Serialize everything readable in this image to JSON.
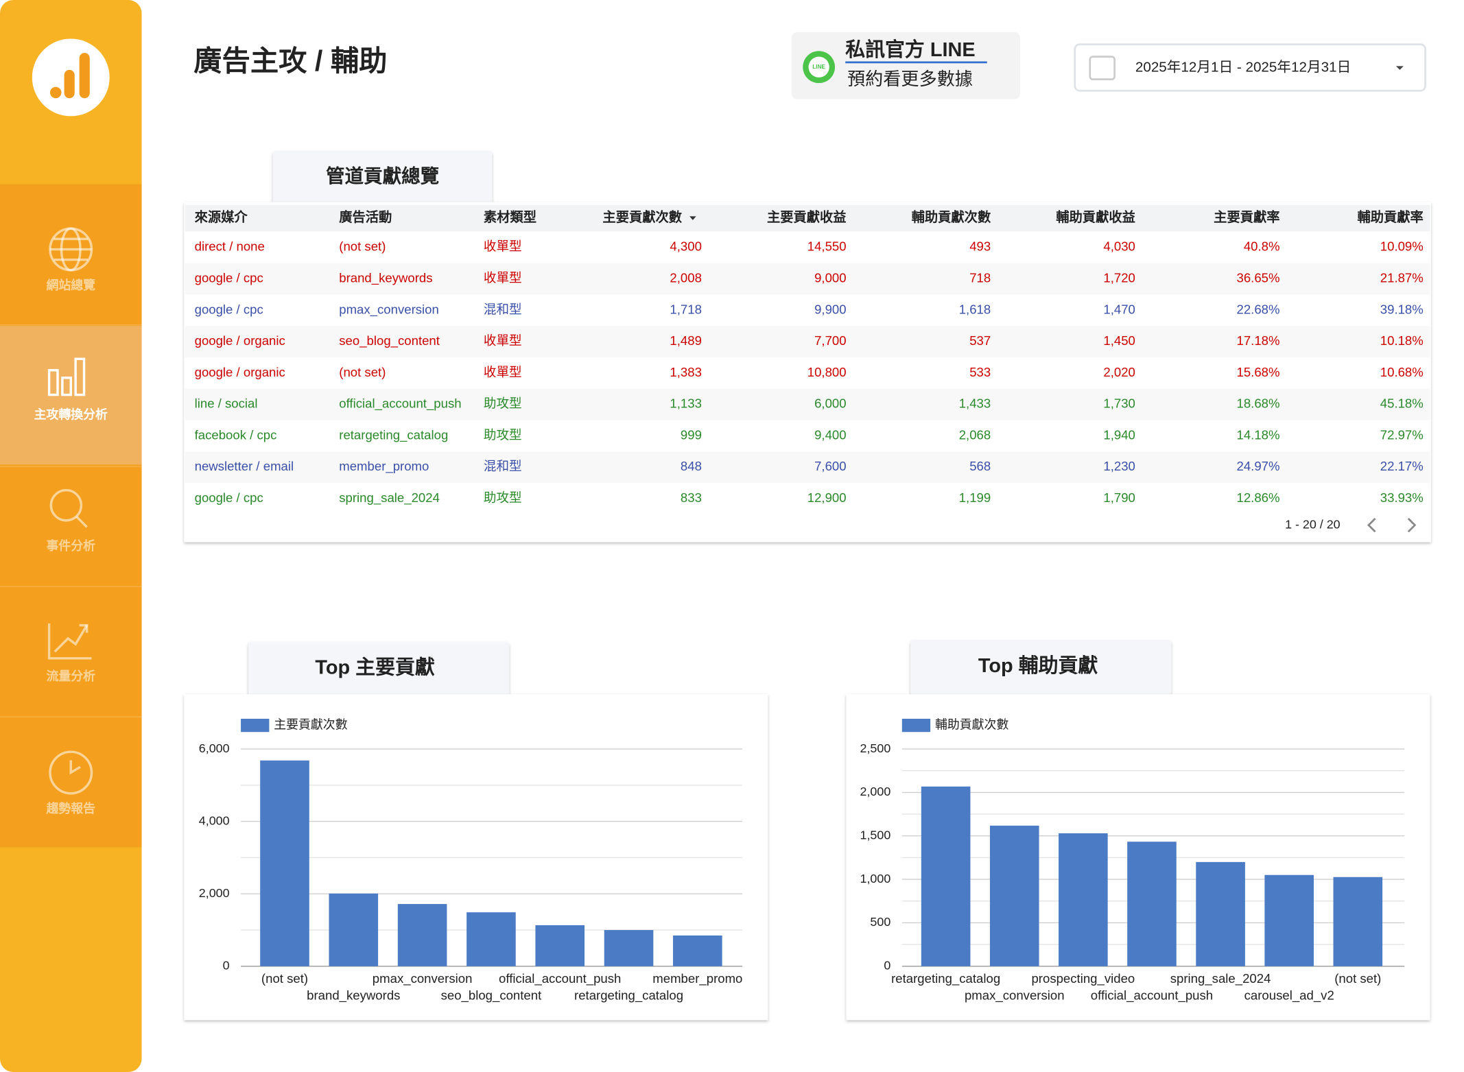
{
  "sidebar": {
    "items": [
      "網站總覽",
      "主攻轉換分析",
      "事件分析",
      "流量分析",
      "趨勢報告"
    ],
    "active": 1
  },
  "header": {
    "title": "廣告主攻 / 輔助"
  },
  "line_badge": {
    "icon": "LINE",
    "title": "私訊官方 LINE",
    "subtitle": "預約看更多數據"
  },
  "date_range": "2025年12月1日 - 2025年12月31日",
  "table": {
    "tab": "管道貢獻總覽",
    "columns": [
      "來源媒介",
      "廣告活動",
      "素材類型",
      "主要貢獻次數",
      "主要貢獻收益",
      "輔助貢獻次數",
      "輔助貢獻收益",
      "主要貢獻率",
      "輔助貢獻率"
    ],
    "rows": [
      {
        "color": "#cc0000",
        "cells": [
          "direct / none",
          "(not set)",
          "收單型",
          "4,300",
          "14,550",
          "493",
          "4,030",
          "40.8%",
          "10.09%"
        ]
      },
      {
        "color": "#cc0000",
        "cells": [
          "google / cpc",
          "brand_keywords",
          "收單型",
          "2,008",
          "9,000",
          "718",
          "1,720",
          "36.65%",
          "21.87%"
        ]
      },
      {
        "color": "#3a4fa8",
        "cells": [
          "google / cpc",
          "pmax_conversion",
          "混和型",
          "1,718",
          "9,900",
          "1,618",
          "1,470",
          "22.68%",
          "39.18%"
        ]
      },
      {
        "color": "#cc0000",
        "cells": [
          "google / organic",
          "seo_blog_content",
          "收單型",
          "1,489",
          "7,700",
          "537",
          "1,450",
          "17.18%",
          "10.18%"
        ]
      },
      {
        "color": "#cc0000",
        "cells": [
          "google / organic",
          "(not set)",
          "收單型",
          "1,383",
          "10,800",
          "533",
          "2,020",
          "15.68%",
          "10.68%"
        ]
      },
      {
        "color": "#2a8a2a",
        "cells": [
          "line / social",
          "official_account_push",
          "助攻型",
          "1,133",
          "6,000",
          "1,433",
          "1,730",
          "18.68%",
          "45.18%"
        ]
      },
      {
        "color": "#2a8a2a",
        "cells": [
          "facebook / cpc",
          "retargeting_catalog",
          "助攻型",
          "999",
          "9,400",
          "2,068",
          "1,940",
          "14.18%",
          "72.97%"
        ]
      },
      {
        "color": "#3a4fa8",
        "cells": [
          "newsletter / email",
          "member_promo",
          "混和型",
          "848",
          "7,600",
          "568",
          "1,230",
          "24.97%",
          "22.17%"
        ]
      },
      {
        "color": "#2a8a2a",
        "cells": [
          "google / cpc",
          "spring_sale_2024",
          "助攻型",
          "833",
          "12,900",
          "1,199",
          "1,790",
          "12.86%",
          "33.93%"
        ]
      }
    ],
    "pagination": "1 - 20 / 20"
  },
  "charts": [
    {
      "type": "bar",
      "title": "Top 主要貢獻",
      "categories": [
        "(not set)",
        "brand_keywords",
        "pmax_conversion",
        "seo_blog_content",
        "official_account_push",
        "retargeting_catalog",
        "member_promo"
      ],
      "series": [
        {
          "name": "主要貢獻次數",
          "color": "#4a7bc4",
          "values": [
            5683,
            2008,
            1718,
            1489,
            1133,
            999,
            848
          ]
        }
      ],
      "ylim": [
        0,
        6000
      ],
      "yticks": [
        0,
        {
          "value": 2000,
          "label": "2,000"
        },
        {
          "value": 4000,
          "label": "4,000"
        },
        {
          "value": 6000,
          "label": "6,000"
        }
      ],
      "minor_gridlines": [
        1000,
        3000,
        5000
      ],
      "grid": true
    },
    {
      "type": "bar",
      "title": "Top 輔助貢獻",
      "categories": [
        "retargeting_catalog",
        "pmax_conversion",
        "prospecting_video",
        "official_account_push",
        "spring_sale_2024",
        "carousel_ad_v2",
        "(not set)"
      ],
      "series": [
        {
          "name": "輔助貢獻次數",
          "color": "#4a7bc4",
          "values": [
            2068,
            1618,
            1530,
            1433,
            1199,
            1050,
            1026
          ]
        }
      ],
      "ylim": [
        0,
        2500
      ],
      "yticks": [
        0,
        500,
        {
          "value": 1000,
          "label": "1,000"
        },
        {
          "value": 1500,
          "label": "1,500"
        },
        {
          "value": 2000,
          "label": "2,000"
        },
        {
          "value": 2500,
          "label": "2,500"
        }
      ],
      "minor_gridlines": [
        250,
        750,
        1250,
        1750,
        2250
      ],
      "grid": true
    }
  ]
}
